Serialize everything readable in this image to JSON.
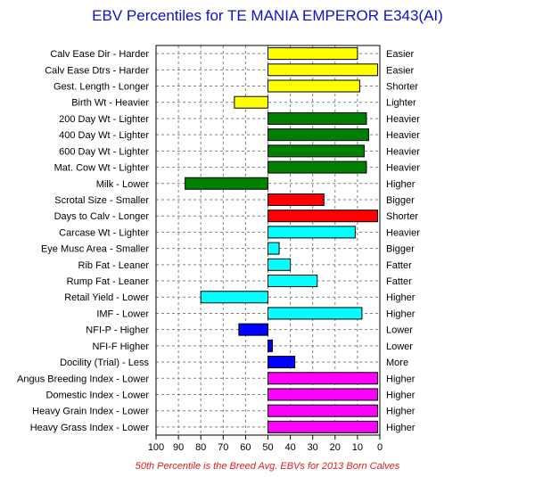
{
  "chart_data": {
    "type": "bar",
    "orientation": "horizontal",
    "title": "EBV Percentiles for TE MANIA EMPEROR E343(AI)",
    "footnote": "50th Percentile is the Breed Avg. EBVs for 2013 Born Calves",
    "xlim": [
      100,
      0
    ],
    "x_reversed": true,
    "baseline": 50,
    "ticks": [
      "100",
      "90",
      "80",
      "70",
      "60",
      "50",
      "40",
      "30",
      "20",
      "10",
      "0"
    ],
    "tick_values": [
      100,
      90,
      80,
      70,
      60,
      50,
      40,
      30,
      20,
      10,
      0
    ],
    "grid": true,
    "categories": [
      "Calv Ease Dir - Harder",
      "Calv Ease Dtrs - Harder",
      "Gest. Length - Longer",
      "Birth Wt - Heavier",
      "200 Day Wt - Lighter",
      "400 Day Wt - Lighter",
      "600 Day Wt - Lighter",
      "Mat. Cow Wt - Lighter",
      "Milk - Lower",
      "Scrotal Size - Smaller",
      "Days to Calv - Longer",
      "Carcase Wt - Lighter",
      "Eye Musc Area - Smaller",
      "Rib Fat - Leaner",
      "Rump Fat - Leaner",
      "Retail Yield - Lower",
      "IMF - Lower",
      "NFI-P - Higher",
      "NFI-F  Higher",
      "Docility (Trial) - Less",
      "Angus Breeding Index - Lower",
      "Domestic Index - Lower",
      "Heavy Grain Index - Lower",
      "Heavy Grass Index - Lower"
    ],
    "right_labels": [
      "Easier",
      "Easier",
      "Shorter",
      "Lighter",
      "Heavier",
      "Heavier",
      "Heavier",
      "Heavier",
      "Higher",
      "Bigger",
      "Shorter",
      "Heavier",
      "Bigger",
      "Fatter",
      "Fatter",
      "Higher",
      "Higher",
      "Lower",
      "Lower",
      "More",
      "Higher",
      "Higher",
      "Higher",
      "Higher"
    ],
    "values": [
      10,
      1,
      9,
      65,
      6,
      5,
      7,
      6,
      87,
      25,
      1,
      11,
      45,
      40,
      28,
      80,
      8,
      63,
      48,
      38,
      1,
      1,
      1,
      1
    ],
    "colors": [
      "#ffff00",
      "#ffff00",
      "#ffff00",
      "#ffff00",
      "#008000",
      "#008000",
      "#008000",
      "#008000",
      "#008000",
      "#ff0000",
      "#ff0000",
      "#00ffff",
      "#00ffff",
      "#00ffff",
      "#00ffff",
      "#00ffff",
      "#00ffff",
      "#0000ff",
      "#0000ff",
      "#0000ff",
      "#ff00ff",
      "#ff00ff",
      "#ff00ff",
      "#ff00ff"
    ],
    "title_color": "#1010c8",
    "footnote_color": "#e02020"
  }
}
